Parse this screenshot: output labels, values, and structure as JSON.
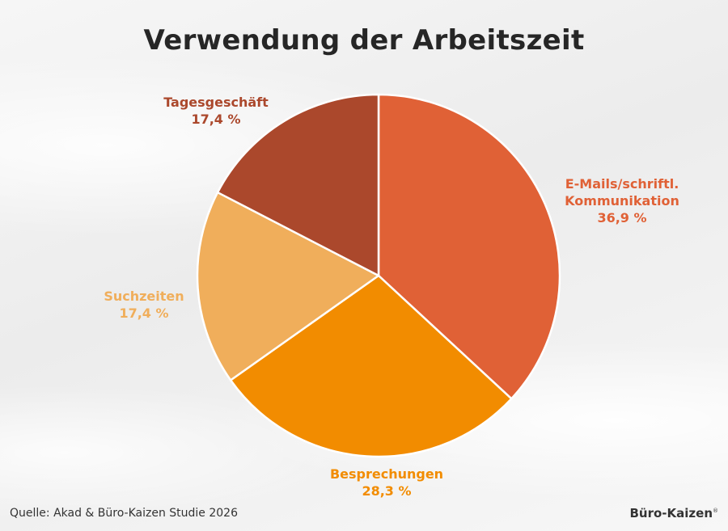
{
  "title": "Verwendung der Arbeitszeit",
  "source": "Quelle: Akad & Büro-Kaizen Studie 2026",
  "brand": "Büro-Kaizen",
  "brand_mark": "®",
  "chart_data": {
    "type": "pie",
    "title": "Verwendung der Arbeitszeit",
    "start_angle_deg": 0,
    "direction": "clockwise",
    "slices": [
      {
        "label": [
          "E-Mails/schriftl.",
          "Kommunikation"
        ],
        "value_label": "36,9 %",
        "value": 36.9,
        "color": "#e06136"
      },
      {
        "label": [
          "Besprechungen"
        ],
        "value_label": "28,3 %",
        "value": 28.3,
        "color": "#f28c00"
      },
      {
        "label": [
          "Suchzeiten"
        ],
        "value_label": "17,4 %",
        "value": 17.4,
        "color": "#f0ae5b"
      },
      {
        "label": [
          "Tagesgeschäft"
        ],
        "value_label": "17,4 %",
        "value": 17.4,
        "color": "#ab482c"
      }
    ]
  }
}
